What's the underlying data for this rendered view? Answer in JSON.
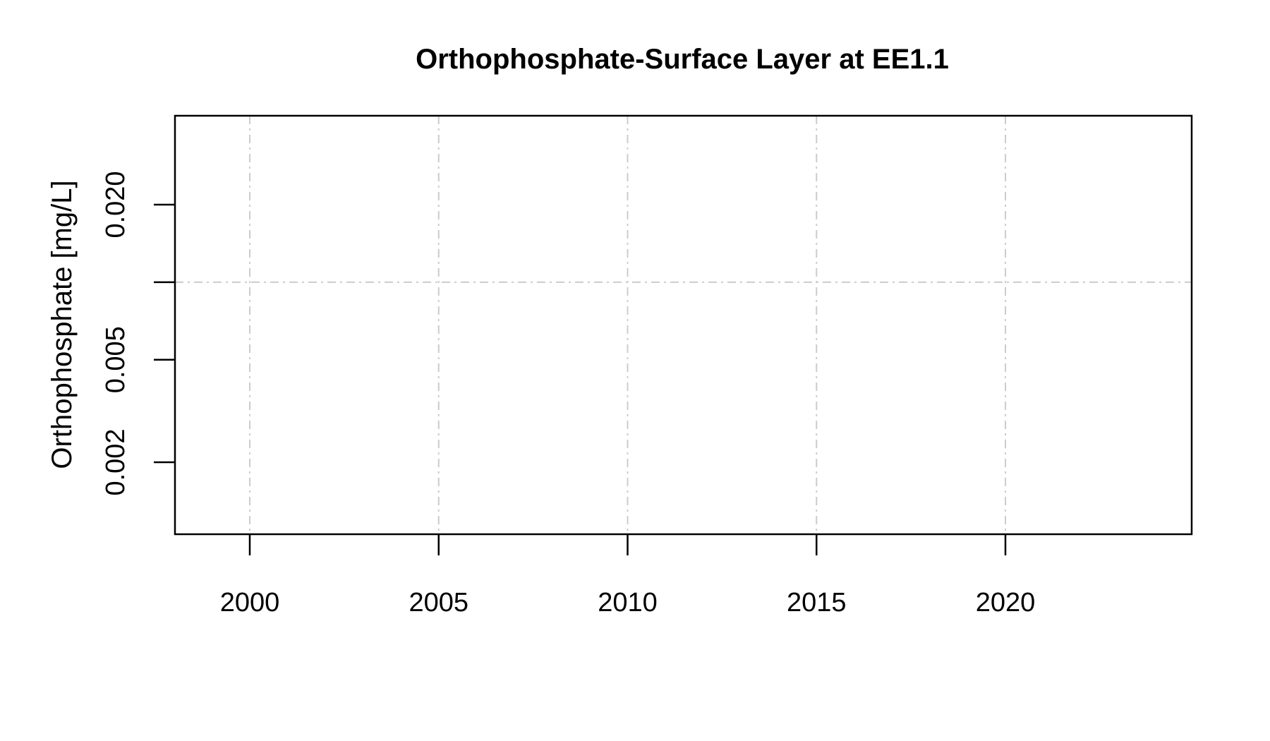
{
  "chart_data": {
    "type": "line",
    "title": "Orthophosphate-Surface Layer at EE1.1",
    "xlabel": "",
    "ylabel": "Orthophosphate [mg/L]",
    "x_scale": "linear",
    "y_scale": "log",
    "xlim": [
      1998,
      2025
    ],
    "ylim": [
      0.0012,
      0.034
    ],
    "x_ticks": [
      {
        "value": 2000,
        "label": "2000"
      },
      {
        "value": 2005,
        "label": "2005"
      },
      {
        "value": 2010,
        "label": "2010"
      },
      {
        "value": 2015,
        "label": "2015"
      },
      {
        "value": 2020,
        "label": "2020"
      }
    ],
    "y_ticks": [
      {
        "value": 0.002,
        "label": "0.002"
      },
      {
        "value": 0.005,
        "label": "0.005"
      },
      {
        "value": 0.01,
        "label": ""
      },
      {
        "value": 0.02,
        "label": "0.020"
      }
    ],
    "grid": true,
    "series": []
  }
}
